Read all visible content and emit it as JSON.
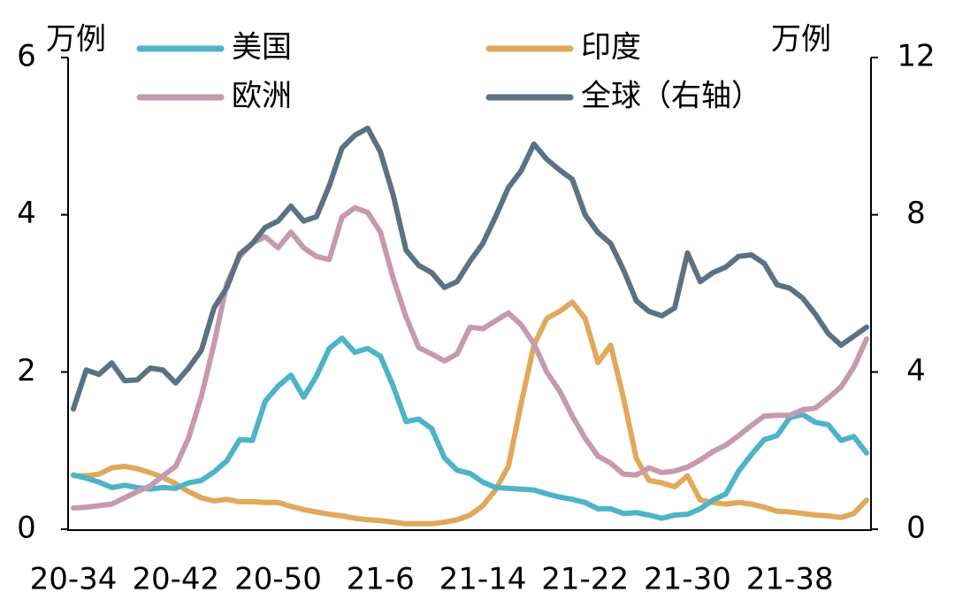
{
  "chart_data": {
    "type": "line",
    "y_unit": "万例",
    "y2_unit": "万例",
    "categories": [
      "20-34",
      null,
      null,
      null,
      null,
      null,
      null,
      null,
      "20-42",
      null,
      null,
      null,
      null,
      null,
      null,
      null,
      "20-50",
      null,
      null,
      null,
      null,
      null,
      null,
      null,
      "21-6",
      null,
      null,
      null,
      null,
      null,
      null,
      null,
      "21-14",
      null,
      null,
      null,
      null,
      null,
      null,
      null,
      "21-22",
      null,
      null,
      null,
      null,
      null,
      null,
      null,
      "21-30",
      null,
      null,
      null,
      null,
      null,
      null,
      null,
      "21-38",
      null,
      null,
      null,
      null,
      null,
      null
    ],
    "ylim": [
      0,
      6
    ],
    "yticks": [
      0,
      2,
      4,
      6
    ],
    "y2lim": [
      0,
      12
    ],
    "y2ticks": [
      0,
      4,
      8,
      12
    ],
    "series": [
      {
        "name": "美国",
        "color": "#4db3c8",
        "values": [
          0.69,
          0.65,
          0.6,
          0.53,
          0.56,
          0.53,
          0.51,
          0.53,
          0.52,
          0.59,
          0.62,
          0.73,
          0.87,
          1.14,
          1.13,
          1.63,
          1.82,
          1.96,
          1.68,
          1.95,
          2.3,
          2.43,
          2.25,
          2.3,
          2.2,
          1.82,
          1.37,
          1.4,
          1.28,
          0.91,
          0.75,
          0.71,
          0.6,
          0.53,
          0.52,
          0.51,
          0.5,
          0.45,
          0.41,
          0.38,
          0.34,
          0.26,
          0.26,
          0.2,
          0.21,
          0.18,
          0.14,
          0.18,
          0.19,
          0.26,
          0.37,
          0.45,
          0.74,
          0.95,
          1.14,
          1.19,
          1.42,
          1.46,
          1.36,
          1.33,
          1.13,
          1.18,
          0.97
        ]
      },
      {
        "name": "印度",
        "color": "#e0a95a",
        "values": [
          0.68,
          0.68,
          0.7,
          0.78,
          0.8,
          0.77,
          0.72,
          0.66,
          0.58,
          0.48,
          0.4,
          0.36,
          0.38,
          0.35,
          0.35,
          0.34,
          0.34,
          0.29,
          0.25,
          0.22,
          0.19,
          0.17,
          0.14,
          0.12,
          0.11,
          0.09,
          0.07,
          0.07,
          0.07,
          0.09,
          0.12,
          0.18,
          0.3,
          0.5,
          0.8,
          1.6,
          2.34,
          2.68,
          2.77,
          2.89,
          2.68,
          2.12,
          2.34,
          1.67,
          0.9,
          0.62,
          0.59,
          0.54,
          0.68,
          0.37,
          0.34,
          0.32,
          0.34,
          0.32,
          0.28,
          0.23,
          0.22,
          0.2,
          0.18,
          0.17,
          0.15,
          0.2,
          0.37
        ]
      },
      {
        "name": "欧洲",
        "color": "#c59aae",
        "values": [
          0.27,
          0.28,
          0.3,
          0.32,
          0.4,
          0.48,
          0.55,
          0.68,
          0.8,
          1.16,
          1.69,
          2.36,
          3.13,
          3.47,
          3.64,
          3.72,
          3.58,
          3.78,
          3.58,
          3.47,
          3.43,
          3.97,
          4.09,
          4.03,
          3.78,
          3.19,
          2.7,
          2.31,
          2.23,
          2.14,
          2.23,
          2.57,
          2.55,
          2.65,
          2.75,
          2.6,
          2.36,
          2.0,
          1.76,
          1.44,
          1.16,
          0.93,
          0.84,
          0.7,
          0.69,
          0.78,
          0.72,
          0.74,
          0.79,
          0.88,
          0.99,
          1.07,
          1.19,
          1.32,
          1.44,
          1.45,
          1.45,
          1.52,
          1.54,
          1.67,
          1.81,
          2.06,
          2.42
        ]
      },
      {
        "name": "全球（右轴）",
        "color": "#5a7282",
        "axis": "y2",
        "values": [
          3.06,
          4.05,
          3.94,
          4.23,
          3.78,
          3.8,
          4.1,
          4.05,
          3.72,
          4.1,
          4.55,
          5.63,
          6.15,
          7.0,
          7.27,
          7.68,
          7.84,
          8.22,
          7.84,
          7.95,
          8.74,
          9.7,
          10.02,
          10.2,
          9.6,
          8.5,
          7.1,
          6.71,
          6.53,
          6.15,
          6.3,
          6.82,
          7.27,
          7.95,
          8.69,
          9.12,
          9.8,
          9.41,
          9.14,
          8.9,
          8.0,
          7.55,
          7.27,
          6.6,
          5.81,
          5.54,
          5.43,
          5.63,
          7.03,
          6.3,
          6.53,
          6.67,
          6.94,
          6.98,
          6.76,
          6.22,
          6.13,
          5.88,
          5.47,
          4.98,
          4.68,
          4.91,
          5.14
        ]
      }
    ]
  }
}
